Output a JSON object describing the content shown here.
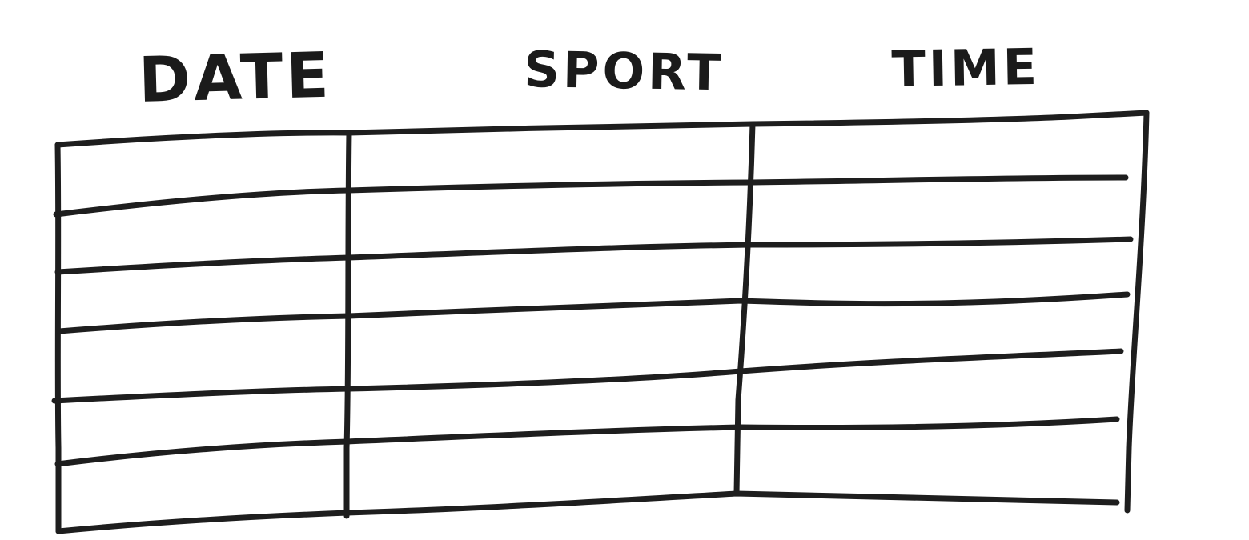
{
  "table": {
    "headers": {
      "date": "DATE",
      "sport": "SPORT",
      "time": "TIME"
    },
    "empty_rows": 6,
    "line_color": "#1e1e1e",
    "background": "#ffffff"
  }
}
